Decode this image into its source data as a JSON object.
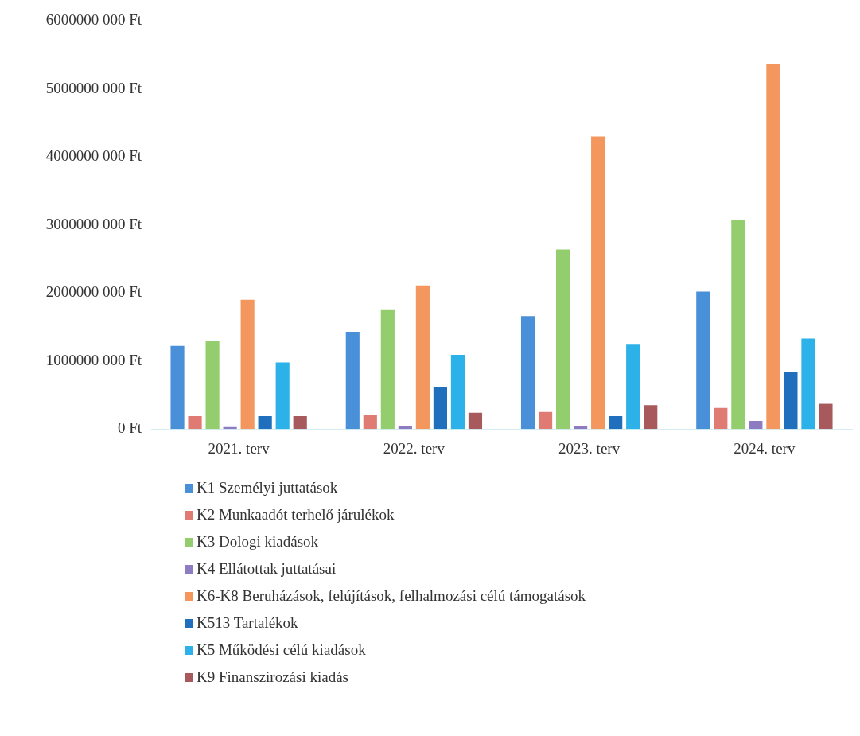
{
  "chart_data": {
    "type": "bar",
    "categories": [
      "2021. terv",
      "2022. terv",
      "2023. terv",
      "2024. terv"
    ],
    "series": [
      {
        "name": "K1 Személyi juttatások",
        "color": "#4a90d9",
        "values": [
          1220000000,
          1430000000,
          1660000000,
          2020000000
        ]
      },
      {
        "name": "K2 Munkaadót terhelő járulékok",
        "color": "#e07b74",
        "values": [
          190000000,
          210000000,
          250000000,
          310000000
        ]
      },
      {
        "name": "K3 Dologi kiadások",
        "color": "#94cd6e",
        "values": [
          1300000000,
          1760000000,
          2640000000,
          3070000000
        ]
      },
      {
        "name": "K4 Ellátottak juttatásai",
        "color": "#8e7cc3",
        "values": [
          30000000,
          50000000,
          50000000,
          120000000
        ]
      },
      {
        "name": "K6-K8 Beruházások, felújítások, felhalmozási célú támogatások",
        "color": "#f4975e",
        "values": [
          1900000000,
          2110000000,
          4300000000,
          5370000000
        ]
      },
      {
        "name": "K513 Tartalékok",
        "color": "#1f6fbd",
        "values": [
          190000000,
          620000000,
          190000000,
          840000000
        ]
      },
      {
        "name": "K5 Működési célú kiadások",
        "color": "#2cb2e8",
        "values": [
          980000000,
          1090000000,
          1250000000,
          1330000000
        ]
      },
      {
        "name": "K9 Finanszírozási kiadás",
        "color": "#a8595c",
        "values": [
          190000000,
          240000000,
          350000000,
          370000000
        ]
      }
    ],
    "ylim": [
      0,
      6000000000
    ],
    "yticks": [
      {
        "value": 0,
        "label": "0 Ft"
      },
      {
        "value": 1000000000,
        "label": "1000000 000 Ft"
      },
      {
        "value": 2000000000,
        "label": "2000000 000 Ft"
      },
      {
        "value": 3000000000,
        "label": "3000000 000 Ft"
      },
      {
        "value": 4000000000,
        "label": "4000000 000 Ft"
      },
      {
        "value": 5000000000,
        "label": "5000000 000 Ft"
      },
      {
        "value": 6000000000,
        "label": "6000000 000 Ft"
      }
    ],
    "grid": false,
    "legend": "bottom"
  }
}
